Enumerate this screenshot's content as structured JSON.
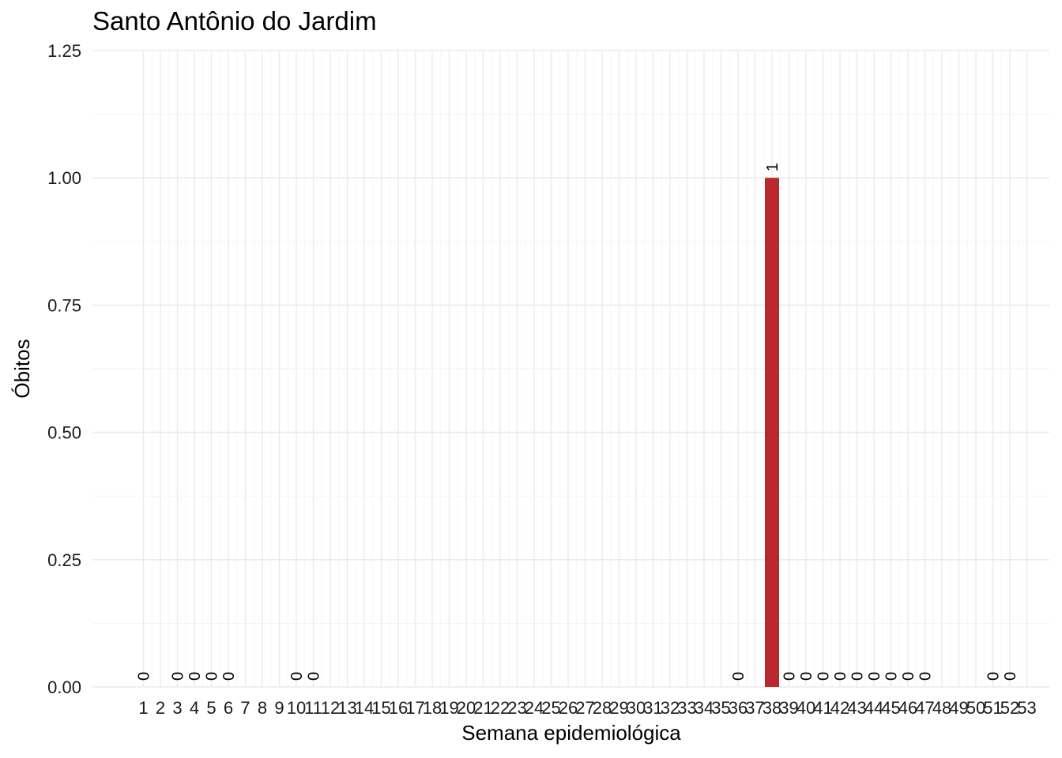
{
  "chart_data": {
    "type": "bar",
    "title": "Santo Antônio do Jardim",
    "xlabel": "Semana epidemiológica",
    "ylabel": "Óbitos",
    "ylim": [
      0,
      1.25
    ],
    "yticks": [
      "0.00",
      "0.25",
      "0.50",
      "0.75",
      "1.00",
      "1.25"
    ],
    "categories": [
      "1",
      "2",
      "3",
      "4",
      "5",
      "6",
      "7",
      "8",
      "9",
      "10",
      "11",
      "12",
      "13",
      "14",
      "15",
      "16",
      "17",
      "18",
      "19",
      "20",
      "21",
      "22",
      "23",
      "24",
      "25",
      "26",
      "27",
      "28",
      "29",
      "30",
      "31",
      "32",
      "33",
      "34",
      "35",
      "36",
      "37",
      "38",
      "39",
      "40",
      "41",
      "42",
      "43",
      "44",
      "45",
      "46",
      "47",
      "48",
      "49",
      "50",
      "51",
      "52",
      "53"
    ],
    "values": [
      0,
      null,
      0,
      0,
      0,
      0,
      null,
      null,
      null,
      0,
      0,
      null,
      null,
      null,
      null,
      null,
      null,
      null,
      null,
      null,
      null,
      null,
      null,
      null,
      null,
      null,
      null,
      null,
      null,
      null,
      null,
      null,
      null,
      null,
      null,
      0,
      null,
      1,
      0,
      0,
      0,
      0,
      0,
      0,
      0,
      0,
      0,
      null,
      null,
      null,
      0,
      0,
      null
    ],
    "bar_color": "#B8282E",
    "grid": true,
    "legend": "none"
  }
}
